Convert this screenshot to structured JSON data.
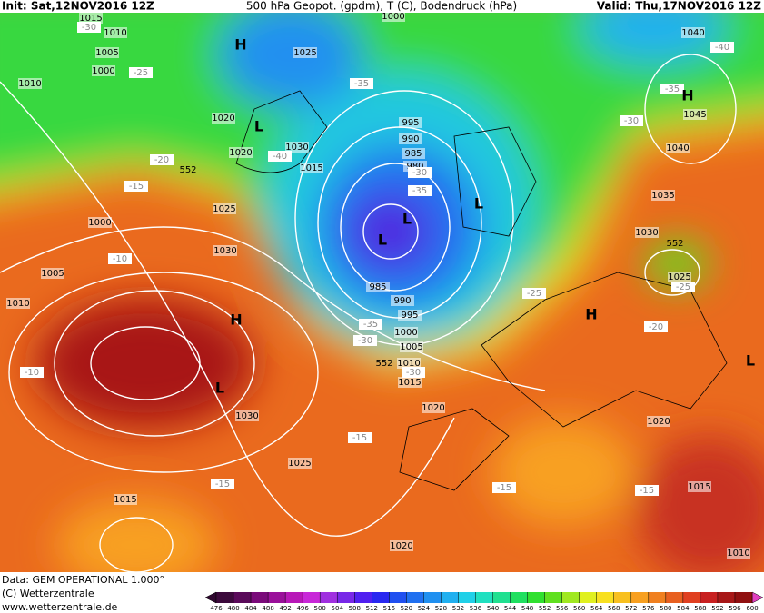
{
  "header": {
    "init": "Init: Sat,12NOV2016 12Z",
    "title": "500 hPa Geopot. (gpdm), T (C), Bodendruck (hPa)",
    "valid": "Valid: Thu,17NOV2016 12Z"
  },
  "footer": {
    "source": "Data: GEM OPERATIONAL 1.000°",
    "copyright": "(C) Wetterzentrale",
    "url": "www.wetterzentrale.de"
  },
  "map": {
    "isobars": [
      1015,
      1010,
      1005,
      1000,
      1010,
      1020,
      1020,
      1030,
      1015,
      1025,
      1000,
      995,
      990,
      985,
      980,
      1000,
      1025,
      1030,
      1005,
      1010,
      985,
      990,
      995,
      1000,
      1005,
      1010,
      1015,
      1020,
      1030,
      1025,
      1015,
      1020,
      1015,
      1010,
      1020,
      1030,
      1025,
      1035,
      1040,
      1045,
      1040
    ],
    "temperatures": [
      -30,
      -25,
      -20,
      -15,
      -10,
      -10,
      -40,
      -35,
      -30,
      -35,
      -35,
      -30,
      -30,
      -25,
      -30,
      -35,
      -40,
      -25,
      -20,
      -15,
      -15,
      -15,
      -15
    ],
    "geopotential_labels": [
      552,
      552,
      552
    ],
    "pressure_centers": [
      "H",
      "L",
      "L",
      "L",
      "L",
      "H",
      "L",
      "H",
      "H",
      "L"
    ]
  },
  "colorbar": {
    "ticks": [
      476,
      480,
      484,
      488,
      492,
      496,
      500,
      504,
      508,
      512,
      516,
      520,
      524,
      528,
      532,
      536,
      540,
      544,
      548,
      552,
      556,
      560,
      564,
      568,
      572,
      576,
      580,
      584,
      588,
      592,
      596,
      600
    ],
    "colors": [
      "#3c0a3c",
      "#5a0a5a",
      "#7a0a7a",
      "#9a109a",
      "#b818b8",
      "#c828d8",
      "#a030e0",
      "#7828e8",
      "#5020f0",
      "#2828f0",
      "#2050f0",
      "#2070f0",
      "#2090f0",
      "#20b0f0",
      "#20d0e8",
      "#20e0c0",
      "#20e090",
      "#20e060",
      "#30e030",
      "#60e020",
      "#a0e820",
      "#e0f020",
      "#f8e020",
      "#f8c020",
      "#f8a020",
      "#f08020",
      "#e86020",
      "#e04020",
      "#c82020",
      "#a81818",
      "#901010"
    ],
    "low_color": "#300830",
    "high_color": "#e040c0"
  }
}
